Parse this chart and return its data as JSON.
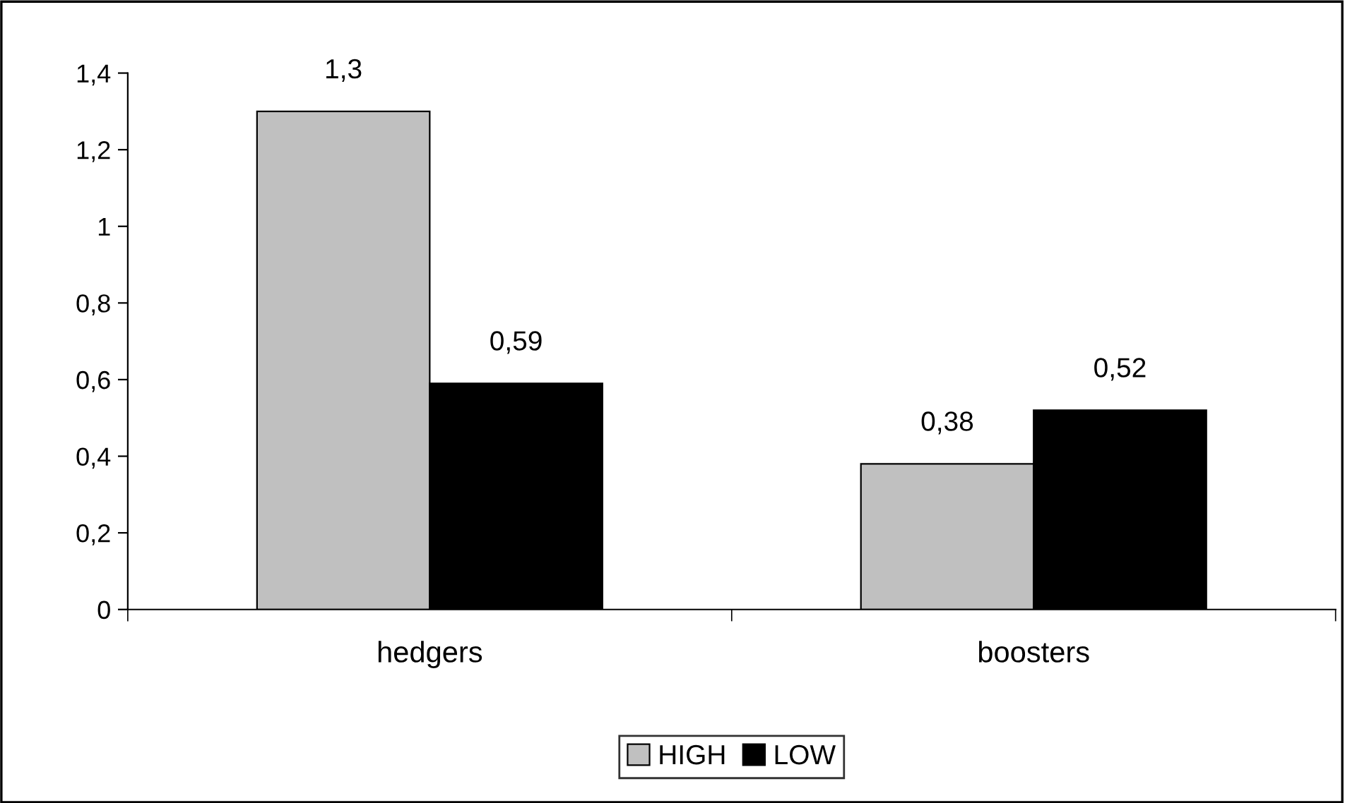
{
  "chart_data": {
    "type": "bar",
    "categories": [
      "hedgers",
      "boosters"
    ],
    "series": [
      {
        "name": "HIGH",
        "color": "#c0c0c0",
        "values": [
          1.3,
          0.38
        ],
        "value_labels": [
          "1,3",
          "0,38"
        ]
      },
      {
        "name": "LOW",
        "color": "#000000",
        "values": [
          0.59,
          0.52
        ],
        "value_labels": [
          "0,59",
          "0,52"
        ]
      }
    ],
    "ylim": [
      0,
      1.4
    ],
    "yticks": [
      0,
      {
        "value": 0.2,
        "label": "0,2"
      },
      {
        "value": 0.4,
        "label": "0,4"
      },
      {
        "value": 0.6,
        "label": "0,6"
      },
      {
        "value": 0.8,
        "label": "0,8"
      },
      1,
      {
        "value": 1.2,
        "label": "1,2"
      },
      {
        "value": 1.4,
        "label": "1,4"
      }
    ],
    "grid": false,
    "legend": "bottom"
  }
}
